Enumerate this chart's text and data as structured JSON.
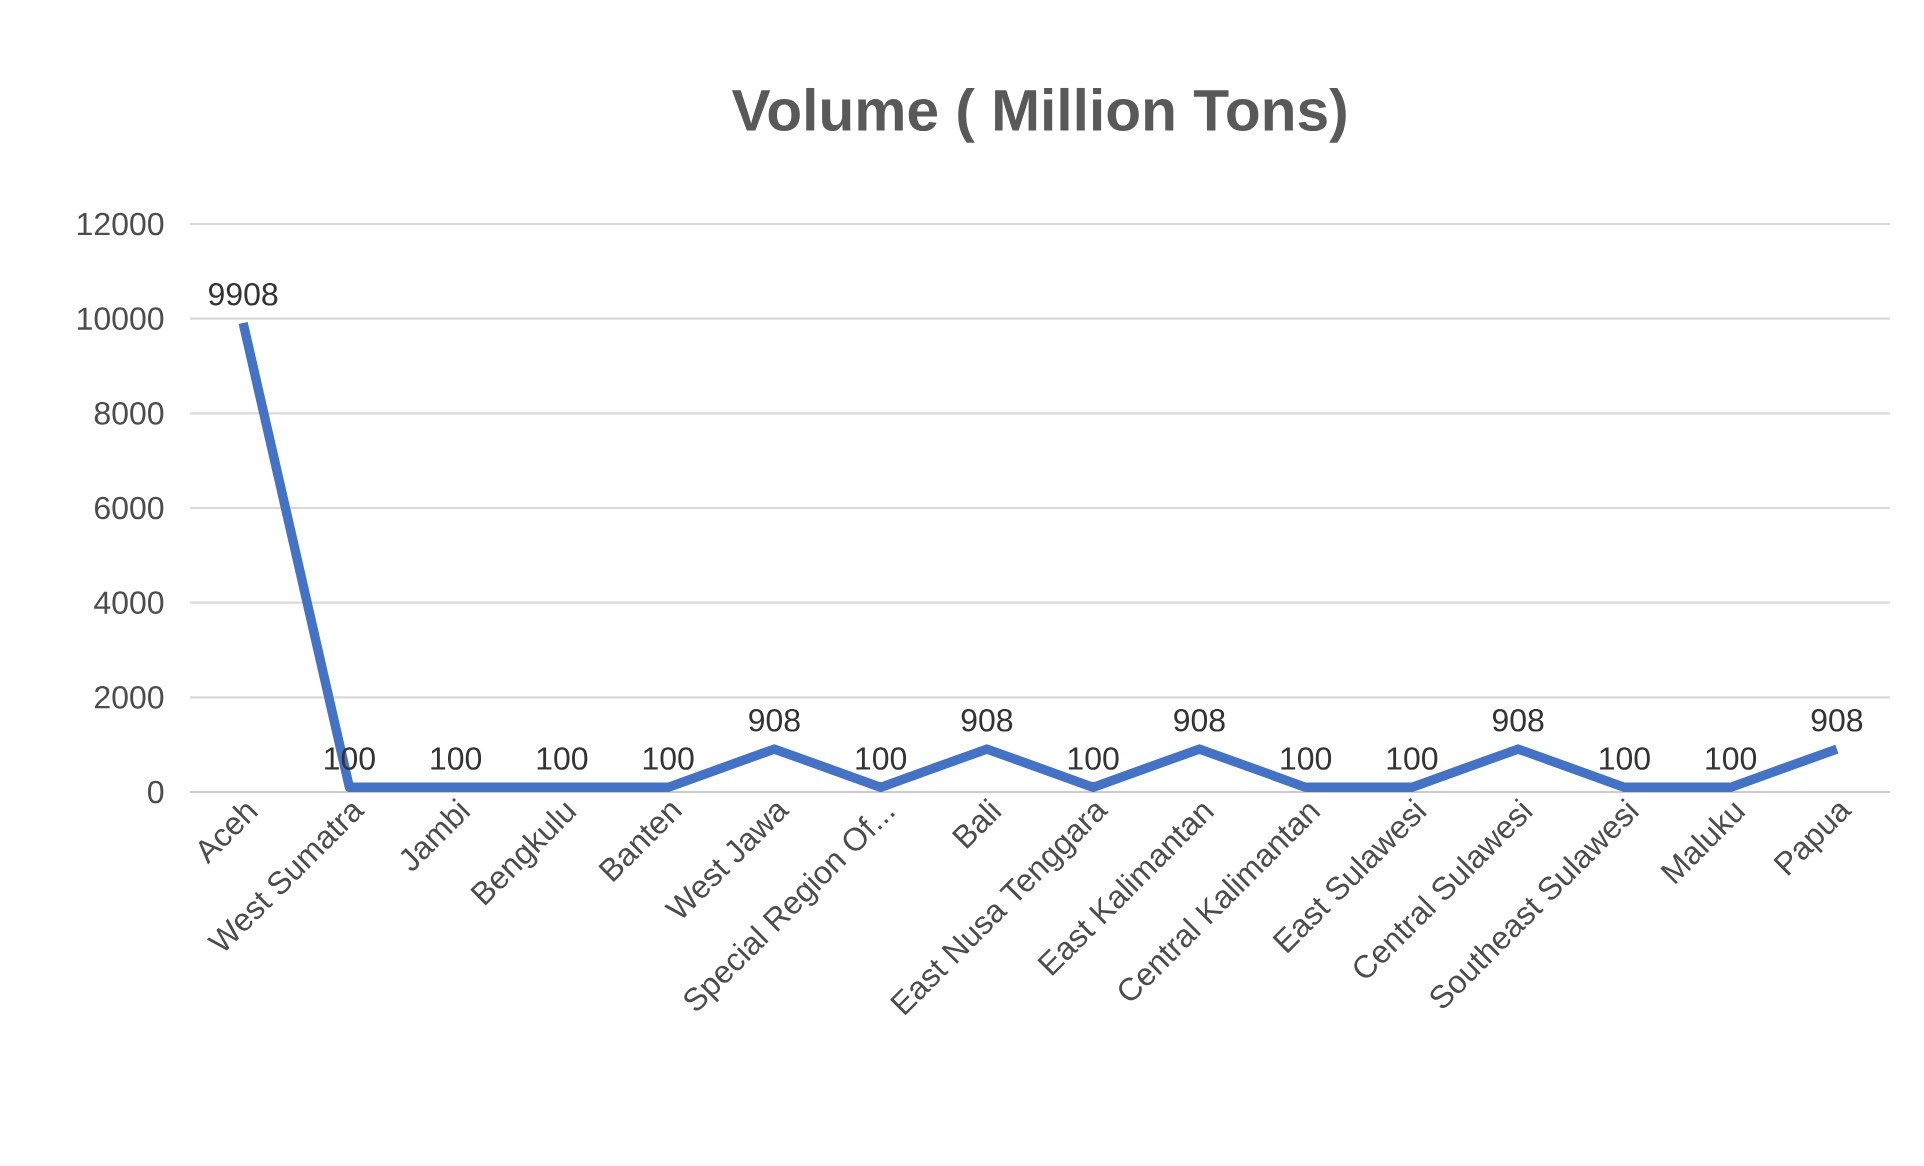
{
  "chart_data": {
    "type": "line",
    "title": "Volume ( Million Tons)",
    "categories": [
      "Aceh",
      "West Sumatra",
      "Jambi",
      "Bengkulu",
      "Banten",
      "West Jawa",
      "Special Region Of...",
      "Bali",
      "East Nusa Tenggara",
      "East Kalimantan",
      "Central Kalimantan",
      "East Sulawesi",
      "Central Sulawesi",
      "Southeast Sulawesi",
      "Maluku",
      "Papua"
    ],
    "values": [
      9908,
      100,
      100,
      100,
      100,
      908,
      100,
      908,
      100,
      908,
      100,
      100,
      908,
      100,
      100,
      908
    ],
    "color": "#4472c4",
    "ylim": [
      0,
      12000
    ],
    "yticks": [
      0,
      2000,
      4000,
      6000,
      8000,
      10000,
      12000
    ],
    "grid": "y",
    "data_labels": true,
    "marker": "none",
    "line_style": "solid"
  }
}
